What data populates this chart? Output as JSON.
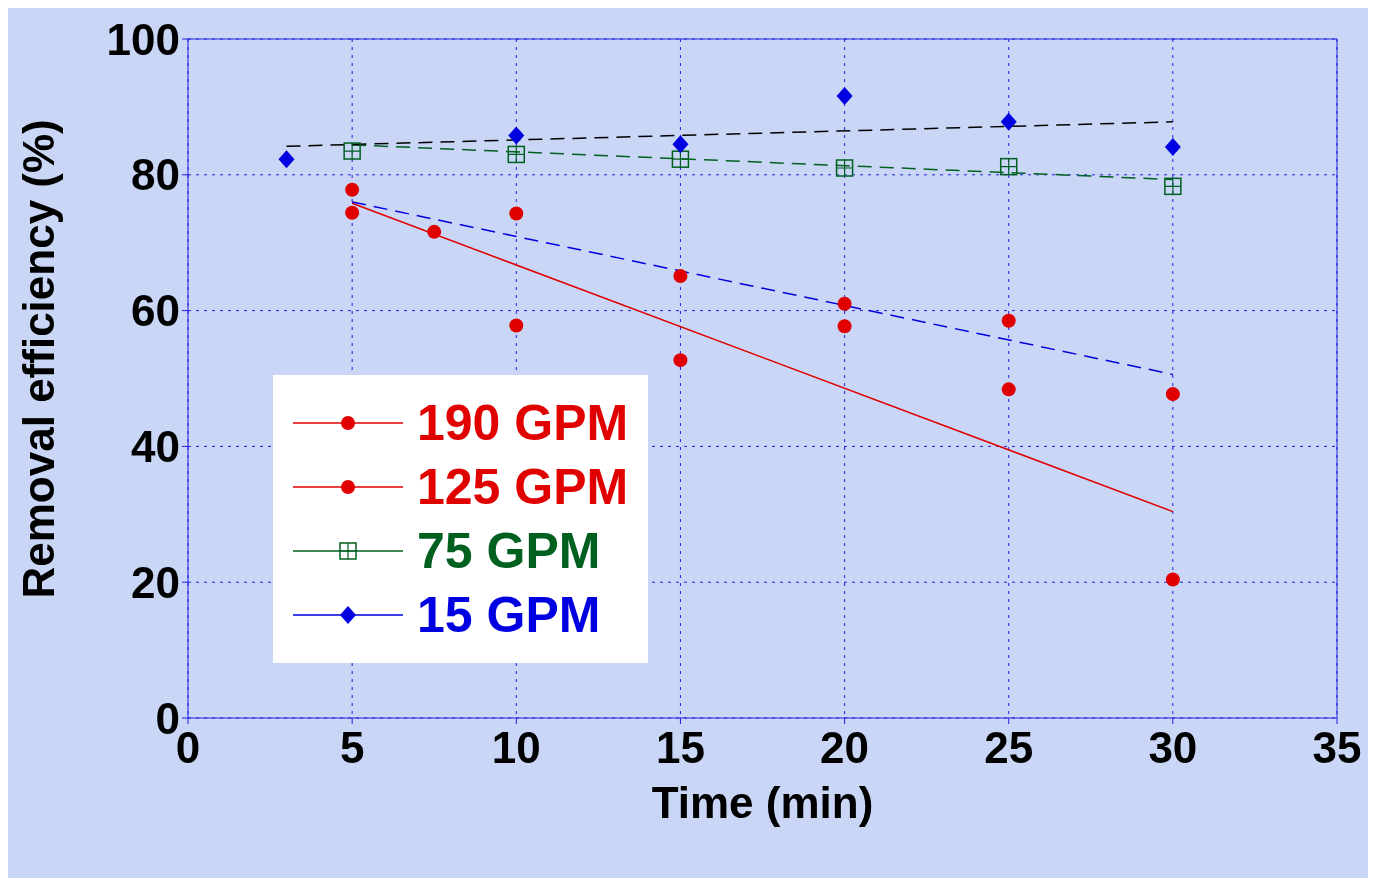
{
  "chart_data": {
    "type": "scatter",
    "xlabel": "Time (min)",
    "ylabel": "Removal efficiency (%)",
    "xlim": [
      0,
      35
    ],
    "xticks": [
      0,
      5,
      10,
      15,
      20,
      25,
      30,
      35
    ],
    "ylim": [
      0,
      100
    ],
    "yticks": [
      0,
      20,
      40,
      60,
      80,
      100
    ],
    "grid": true,
    "legend": "bottom left",
    "series": [
      {
        "name": "190 GPM",
        "marker": "circle",
        "color": "#e00000",
        "x": [
          5,
          10,
          15,
          20,
          25,
          30
        ],
        "values": [
          77.8,
          57.8,
          52.7,
          57.7,
          48.4,
          20.4
        ]
      },
      {
        "name": "125 GPM",
        "marker": "circle",
        "color": "#e00000",
        "x": [
          5,
          7.5,
          10,
          15,
          20,
          25,
          30
        ],
        "values": [
          74.4,
          71.6,
          74.3,
          65.1,
          61.0,
          58.5,
          47.7
        ]
      },
      {
        "name": "75 GPM",
        "marker": "square",
        "color": "#006020",
        "x": [
          5,
          10,
          15,
          20,
          25,
          30
        ],
        "values": [
          83.5,
          83.0,
          82.3,
          81.0,
          81.2,
          78.3
        ]
      },
      {
        "name": "15 GPM",
        "marker": "diamond",
        "color": "#0000e0",
        "x": [
          3,
          10,
          15,
          20,
          25,
          30
        ],
        "values": [
          82.3,
          85.8,
          84.5,
          91.6,
          87.8,
          84.1
        ]
      },
      {
        "type": "line",
        "line_style": "solid",
        "color": "#e00000",
        "x": [
          5,
          30
        ],
        "values": [
          75.8,
          30.4
        ]
      },
      {
        "type": "line",
        "line_style": "dashed",
        "color": "#0000e0",
        "x": [
          5,
          30
        ],
        "values": [
          76,
          50.6
        ]
      },
      {
        "type": "line",
        "line_style": "dashed",
        "color": "#006020",
        "x": [
          5,
          30
        ],
        "values": [
          84.4,
          79.3
        ]
      },
      {
        "type": "line",
        "line_style": "dashed",
        "color": "#000000",
        "x": [
          3,
          30
        ],
        "values": [
          84.2,
          87.8
        ]
      }
    ]
  }
}
